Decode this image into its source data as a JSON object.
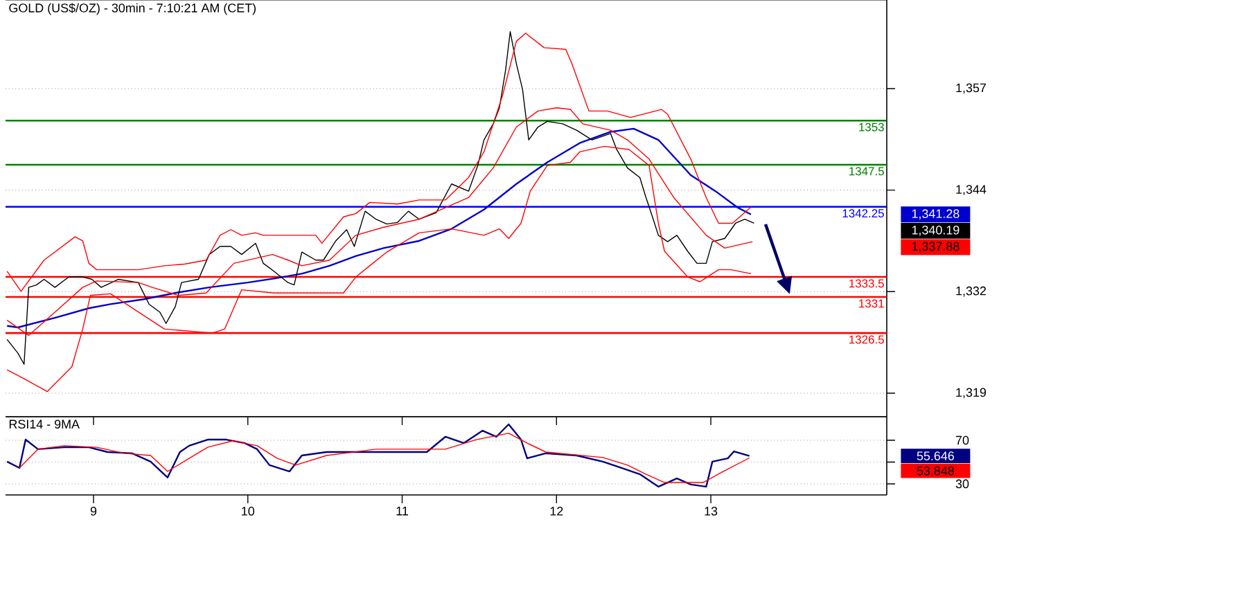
{
  "chart_data": [
    {
      "type": "line",
      "title": "GOLD (US$/OZ) - 30min - 7:10:21 AM (CET)",
      "xlim": [
        8.43,
        14.14
      ],
      "xticks": [
        9,
        10,
        11,
        12,
        13
      ],
      "ylim": [
        1316.06,
        1368.05
      ],
      "yticks": [
        {
          "value": 1357,
          "label": "1,357"
        },
        {
          "value": 1344.33,
          "label": "1,344"
        },
        {
          "value": 1331.67,
          "label": "1,332"
        },
        {
          "value": 1319,
          "label": "1,319"
        }
      ],
      "tick_labels": "y",
      "grid": "y",
      "marker": "none",
      "series": [
        {
          "color": "#0000cc",
          "x": [
            8.44,
            8.51,
            8.75,
            8.97,
            9.11,
            9.32,
            9.53,
            9.75,
            10.0,
            10.17,
            10.35,
            10.53,
            10.7,
            10.88,
            11.11,
            11.32,
            11.53,
            11.74,
            11.94,
            12.15,
            12.35,
            12.5,
            12.66,
            12.87,
            13.03,
            13.17,
            13.26
          ],
          "values": [
            1327.4,
            1327.2,
            1328.4,
            1329.6,
            1330.1,
            1330.7,
            1331.5,
            1332.2,
            1332.8,
            1333.3,
            1333.9,
            1334.9,
            1336.1,
            1337.1,
            1338.0,
            1339.5,
            1341.9,
            1345.1,
            1347.8,
            1350.2,
            1351.6,
            1352.0,
            1350.6,
            1346.2,
            1344.2,
            1342.2,
            1341.3
          ]
        },
        {
          "color": "#000000",
          "x": [
            8.44,
            8.51,
            8.55,
            8.58,
            8.63,
            8.68,
            8.75,
            8.84,
            8.93,
            8.99,
            9.05,
            9.16,
            9.29,
            9.36,
            9.43,
            9.47,
            9.53,
            9.57,
            9.68,
            9.75,
            9.82,
            9.89,
            9.96,
            10.05,
            10.1,
            10.17,
            10.26,
            10.3,
            10.35,
            10.44,
            10.49,
            10.57,
            10.64,
            10.69,
            10.76,
            10.83,
            10.9,
            10.97,
            11.04,
            11.11,
            11.22,
            11.32,
            11.43,
            11.49,
            11.53,
            11.59,
            11.63,
            11.67,
            11.7,
            11.74,
            11.78,
            11.82,
            11.88,
            11.94,
            12.04,
            12.13,
            12.23,
            12.35,
            12.39,
            12.46,
            12.54,
            12.58,
            12.62,
            12.66,
            12.72,
            12.78,
            12.85,
            12.91,
            12.97,
            13.01,
            13.09,
            13.16,
            13.22,
            13.28
          ],
          "values": [
            1325.7,
            1324.0,
            1322.6,
            1332.2,
            1332.5,
            1333.2,
            1332.2,
            1333.5,
            1333.5,
            1333.2,
            1332.2,
            1333.2,
            1332.8,
            1330.1,
            1329.1,
            1327.7,
            1329.8,
            1332.8,
            1333.2,
            1336.3,
            1337.3,
            1337.3,
            1336.3,
            1337.7,
            1335.2,
            1334.2,
            1332.8,
            1332.5,
            1336.6,
            1335.6,
            1335.6,
            1338.0,
            1339.4,
            1337.3,
            1341.7,
            1340.7,
            1340.1,
            1340.3,
            1341.7,
            1340.7,
            1341.5,
            1345.1,
            1344.2,
            1347.4,
            1350.6,
            1352.6,
            1354.6,
            1359.3,
            1364.1,
            1360.1,
            1356.9,
            1350.6,
            1352.2,
            1352.9,
            1352.6,
            1351.8,
            1350.6,
            1351.4,
            1349.4,
            1347.1,
            1345.9,
            1343.4,
            1341.1,
            1338.7,
            1337.9,
            1338.7,
            1336.7,
            1335.2,
            1335.2,
            1337.9,
            1338.3,
            1340.2,
            1340.7,
            1340.2
          ]
        },
        {
          "color": "#ff0000",
          "x": [
            8.44,
            8.58,
            8.75,
            8.93,
            9.02,
            9.29,
            9.38,
            9.55,
            9.73,
            9.91,
            10.16,
            10.26,
            10.35,
            10.53,
            10.7,
            10.88,
            11.11,
            11.43,
            11.59,
            11.74,
            11.88,
            12.0,
            12.09,
            12.17,
            12.35,
            12.46,
            12.6,
            12.76,
            12.97,
            13.09,
            13.27
          ],
          "values": [
            1328.1,
            1326.2,
            1329.1,
            1332.2,
            1333.0,
            1332.8,
            1332.2,
            1331.2,
            1331.5,
            1335.2,
            1336.3,
            1335.6,
            1334.9,
            1335.6,
            1338.7,
            1339.7,
            1340.7,
            1343.4,
            1347.1,
            1352.2,
            1354.2,
            1354.6,
            1354.4,
            1352.6,
            1351.8,
            1350.6,
            1348.2,
            1343.4,
            1338.7,
            1337.1,
            1337.9
          ]
        },
        {
          "color": "#ff0000",
          "x": [
            8.44,
            8.53,
            8.68,
            8.88,
            8.93,
            8.97,
            9.02,
            9.29,
            9.46,
            9.59,
            9.73,
            9.82,
            9.89,
            9.96,
            10.05,
            10.1,
            10.35,
            10.44,
            10.48,
            10.62,
            10.7,
            10.79,
            10.97,
            11.11,
            11.28,
            11.43,
            11.53,
            11.65,
            11.74,
            11.8,
            11.92,
            12.06,
            12.1,
            12.21,
            12.33,
            12.48,
            12.68,
            12.72,
            12.87,
            12.97,
            13.05,
            13.14,
            13.26
          ],
          "values": [
            1334.2,
            1331.7,
            1335.6,
            1338.5,
            1338.0,
            1335.2,
            1334.4,
            1334.4,
            1334.9,
            1335.1,
            1335.6,
            1338.7,
            1339.4,
            1338.7,
            1339.0,
            1338.7,
            1338.7,
            1338.7,
            1337.7,
            1341.0,
            1341.4,
            1342.8,
            1342.6,
            1343.1,
            1343.1,
            1345.9,
            1349.1,
            1356.1,
            1362.9,
            1363.9,
            1362.1,
            1361.9,
            1360.1,
            1354.2,
            1354.2,
            1353.4,
            1354.4,
            1353.8,
            1348.2,
            1343.4,
            1340.2,
            1340.2,
            1342.2
          ]
        },
        {
          "color": "#ff0000",
          "x": [
            8.44,
            8.54,
            8.7,
            8.86,
            8.93,
            8.98,
            9.11,
            9.46,
            9.77,
            9.85,
            9.96,
            10.17,
            10.62,
            10.7,
            10.79,
            10.9,
            11.11,
            11.32,
            11.53,
            11.63,
            11.69,
            11.77,
            11.83,
            11.94,
            12.09,
            12.15,
            12.31,
            12.47,
            12.6,
            12.66,
            12.7,
            12.85,
            12.93,
            13.05,
            13.13,
            13.26
          ],
          "values": [
            1321.9,
            1320.9,
            1319.2,
            1322.3,
            1327.0,
            1331.2,
            1331.4,
            1327.0,
            1326.5,
            1327.0,
            1331.9,
            1331.5,
            1331.5,
            1333.5,
            1334.9,
            1336.6,
            1339.0,
            1339.5,
            1338.7,
            1339.5,
            1338.3,
            1340.2,
            1344.2,
            1347.4,
            1347.8,
            1349.1,
            1349.8,
            1349.4,
            1347.4,
            1340.2,
            1336.7,
            1333.5,
            1332.9,
            1334.4,
            1334.4,
            1333.9
          ]
        }
      ],
      "ref_lines": [
        {
          "axis": "y",
          "value": 1353,
          "label": "1353",
          "color": "#008000"
        },
        {
          "axis": "y",
          "value": 1347.5,
          "label": "1347.5",
          "color": "#008000"
        },
        {
          "axis": "y",
          "value": 1342.25,
          "label": "1342.25",
          "color": "#0000ff"
        },
        {
          "axis": "y",
          "value": 1333.5,
          "label": "1333.5",
          "color": "#ff0000"
        },
        {
          "axis": "y",
          "value": 1331,
          "label": "1331",
          "color": "#ff0000"
        },
        {
          "axis": "y",
          "value": 1326.5,
          "label": "1326.5",
          "color": "#ff0000"
        }
      ],
      "annotations": [
        "1,341.28",
        "1,340.19",
        "1,337.88"
      ]
    },
    {
      "type": "line",
      "title": "RSI14 - 9MA",
      "xlim": [
        8.43,
        14.14
      ],
      "xticks": [
        9,
        10,
        11,
        12,
        13
      ],
      "ylim": [
        19.8,
        91.6
      ],
      "yticks": [
        70,
        {
          "value": 50,
          "label": null
        },
        30
      ],
      "grid": "y",
      "marker": "none",
      "series": [
        {
          "color": "#000080",
          "x": [
            8.44,
            8.52,
            8.56,
            8.64,
            8.81,
            8.97,
            9.09,
            9.25,
            9.37,
            9.48,
            9.56,
            9.62,
            9.74,
            9.86,
            9.98,
            10.06,
            10.14,
            10.27,
            10.35,
            10.51,
            10.67,
            10.83,
            11.0,
            11.16,
            11.28,
            11.4,
            11.52,
            11.61,
            11.69,
            11.77,
            11.81,
            11.93,
            12.13,
            12.3,
            12.42,
            12.54,
            12.66,
            12.78,
            12.87,
            12.97,
            13.01,
            13.11,
            13.15,
            13.25
          ],
          "values": [
            50.4,
            44.6,
            70.6,
            61.8,
            63.6,
            63.6,
            59.2,
            58.0,
            50.4,
            35.8,
            59.2,
            65.0,
            70.6,
            70.6,
            67.4,
            61.8,
            47.2,
            41.4,
            56.0,
            59.2,
            59.2,
            59.2,
            59.2,
            59.2,
            73.2,
            67.4,
            78.8,
            73.2,
            84.6,
            70.6,
            53.4,
            58.0,
            56.0,
            50.4,
            44.6,
            38.8,
            27.4,
            35.0,
            29.4,
            27.4,
            50.4,
            53.4,
            59.8,
            55.6
          ]
        },
        {
          "color": "#ff0000",
          "x": [
            8.52,
            8.64,
            8.81,
            9.02,
            9.2,
            9.37,
            9.48,
            9.62,
            9.74,
            9.9,
            10.06,
            10.19,
            10.31,
            10.51,
            10.83,
            11.28,
            11.48,
            11.69,
            11.81,
            11.93,
            12.3,
            12.46,
            12.58,
            12.7,
            12.95,
            13.08,
            13.25
          ],
          "values": [
            44.6,
            61.8,
            65.0,
            63.6,
            58.0,
            56.0,
            41.4,
            53.4,
            63.6,
            69.4,
            65.0,
            53.4,
            47.2,
            56.0,
            61.8,
            61.8,
            70.6,
            76.4,
            67.4,
            59.2,
            54.2,
            47.2,
            38.8,
            31.2,
            31.2,
            41.4,
            53.8
          ]
        }
      ],
      "annotations": [
        "55.646",
        "53.848"
      ]
    }
  ]
}
